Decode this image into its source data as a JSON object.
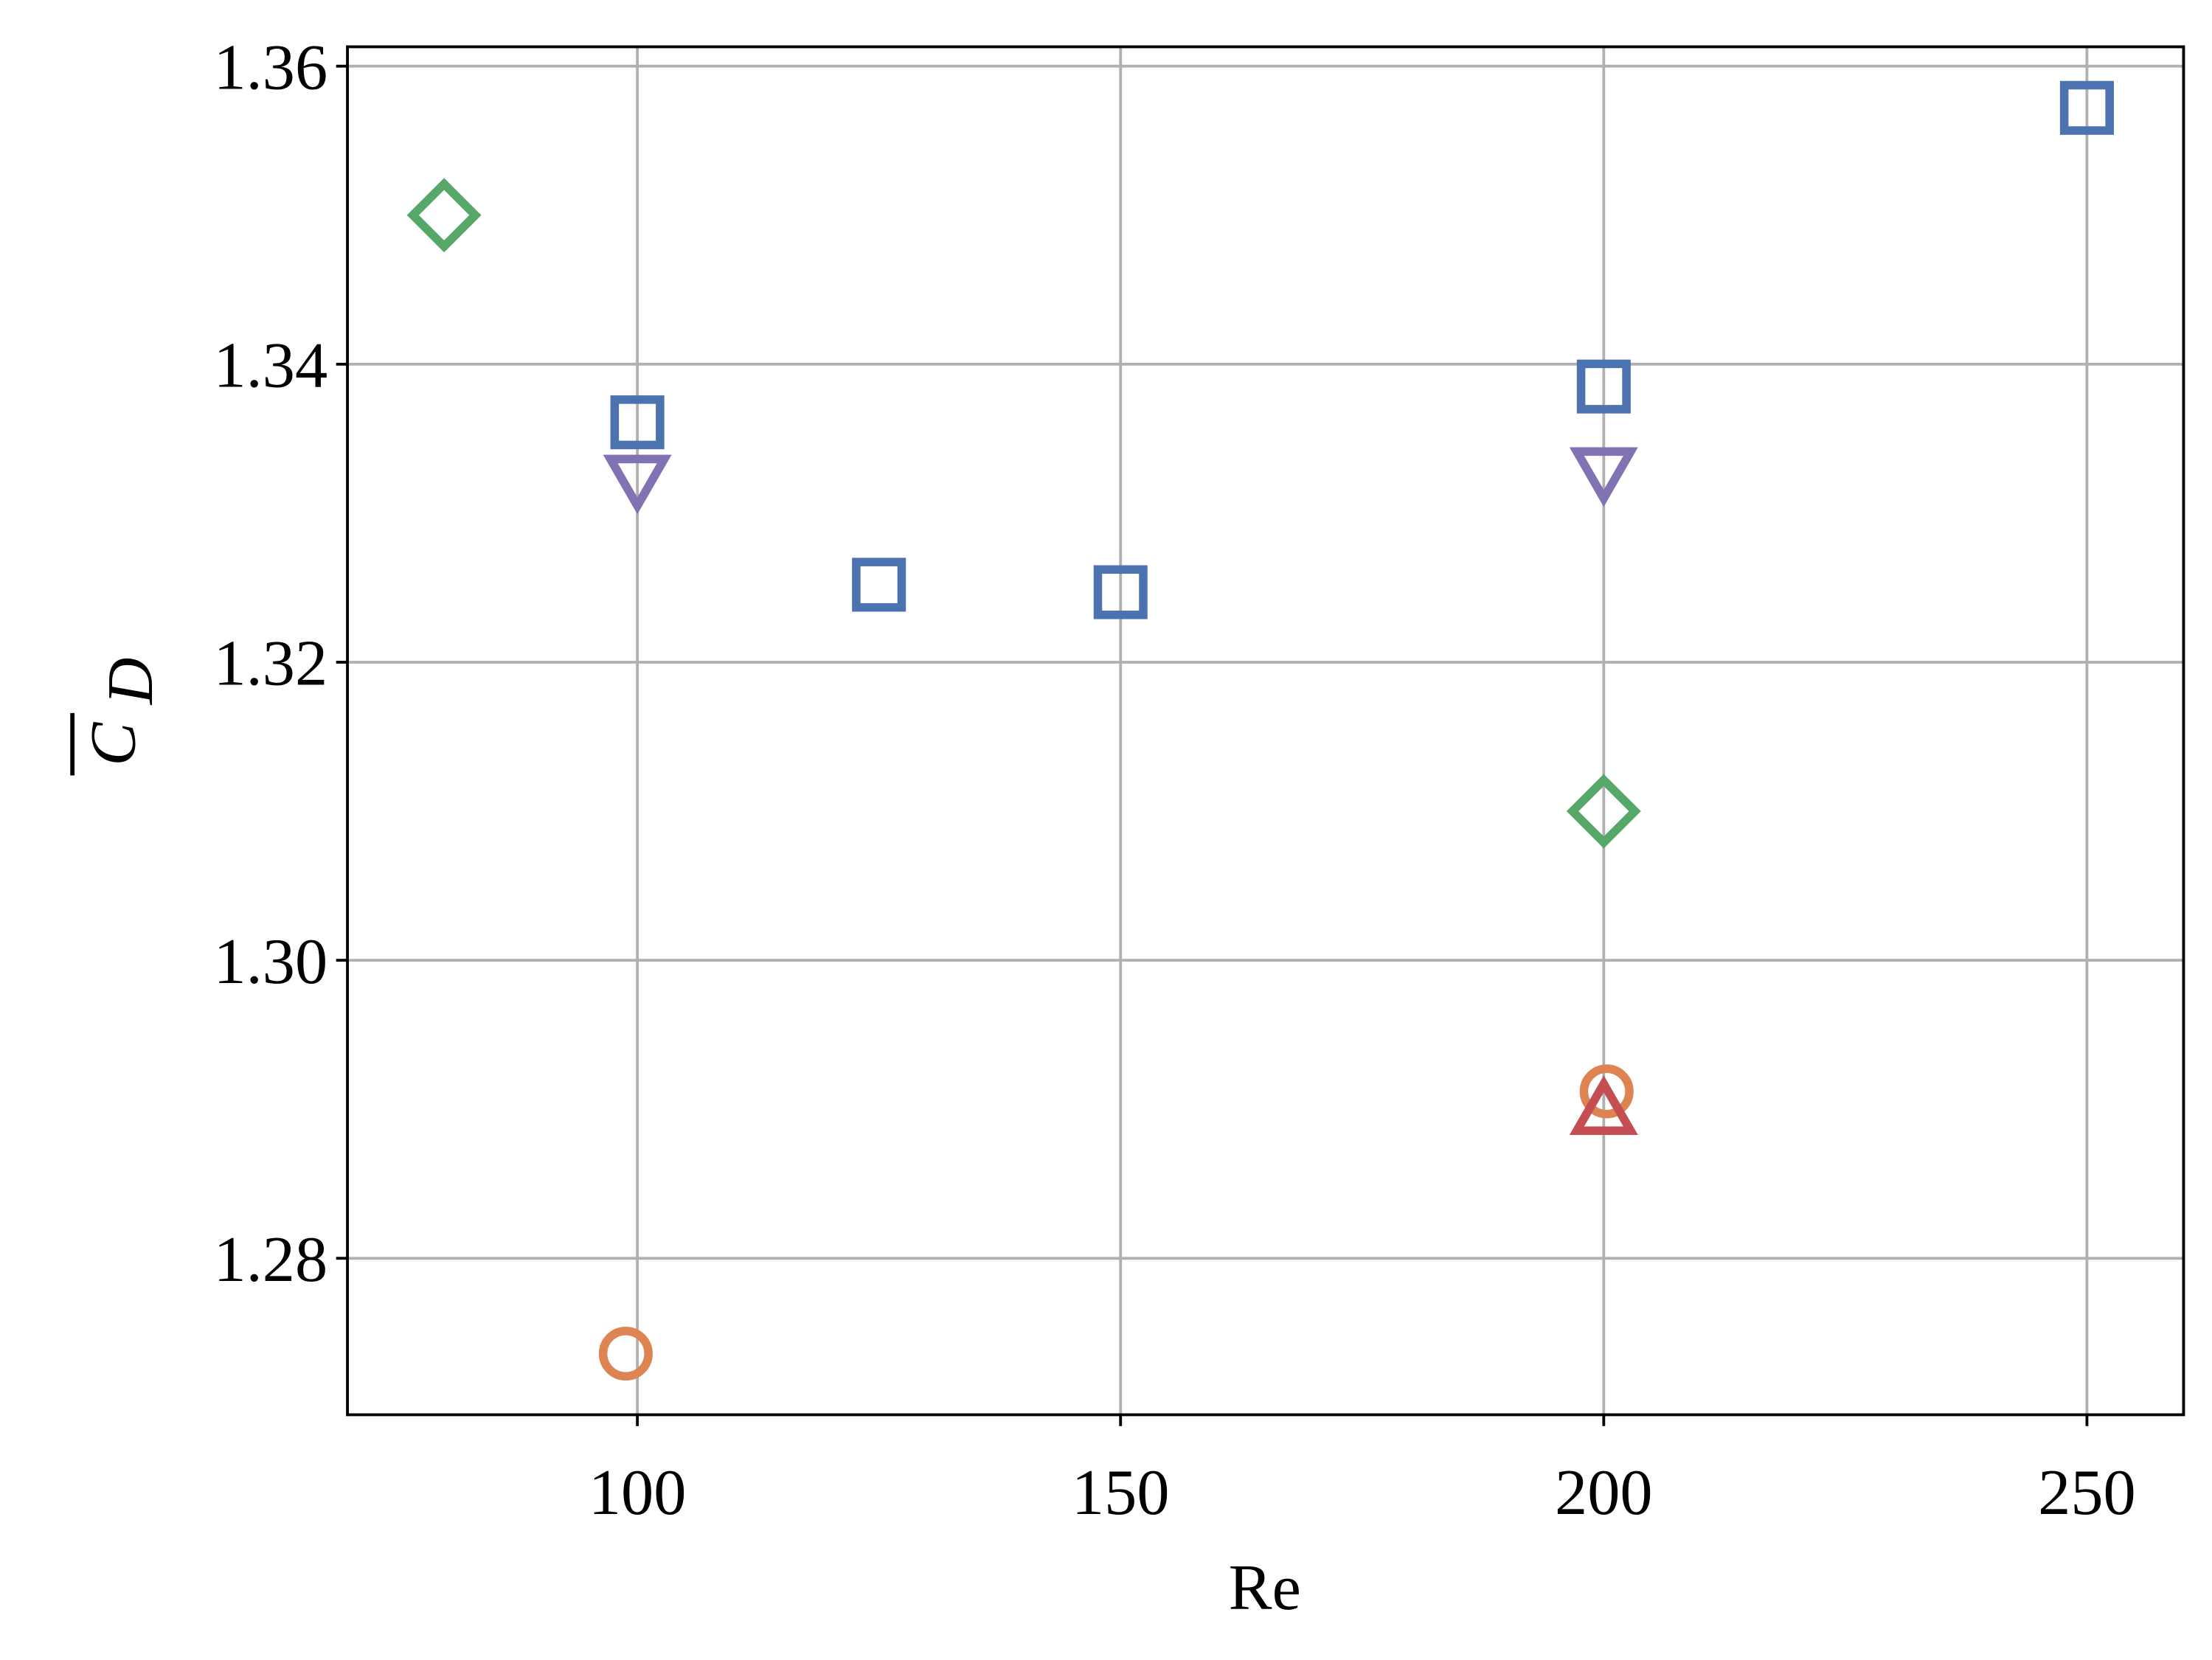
{
  "chart_data": {
    "type": "scatter",
    "xlabel": "Re",
    "ylabel": {
      "symbol": "C",
      "subscript": "D"
    },
    "xlim": [
      70,
      260
    ],
    "xticks": [
      100,
      150,
      200,
      250
    ],
    "ylim": [
      1.2695,
      1.3613
    ],
    "yticks": [
      1.28,
      {
        "value": 1.3,
        "label": "1.30"
      },
      1.32,
      1.34,
      1.36
    ],
    "grid": true,
    "series": [
      {
        "marker": "square",
        "color": "#4c72b0",
        "x": [
          100,
          125,
          150,
          200,
          250
        ],
        "values": [
          1.3361,
          1.3252,
          1.3247,
          1.3385,
          1.3572
        ]
      },
      {
        "marker": "circle",
        "color": "#dd8452",
        "x": [
          98.8,
          200.3
        ],
        "values": [
          1.2736,
          1.2912
        ]
      },
      {
        "marker": "diamond",
        "color": "#55a868",
        "x": [
          80,
          200
        ],
        "values": [
          1.35,
          1.31
        ]
      },
      {
        "marker": "triangle-up",
        "color": "#c44e52",
        "x": [
          200
        ],
        "values": [
          1.2898
        ]
      },
      {
        "marker": "triangle-down",
        "color": "#8172b3",
        "x": [
          100,
          200
        ],
        "values": [
          1.3324,
          1.3329
        ]
      }
    ]
  }
}
